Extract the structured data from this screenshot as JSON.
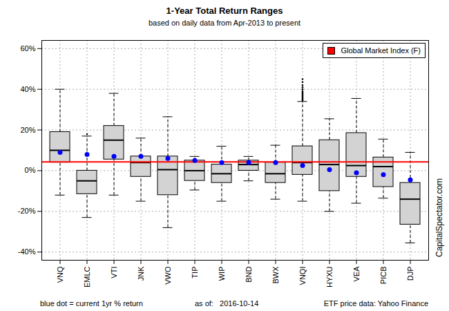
{
  "chart_data": {
    "type": "box",
    "title": "1-Year Total Return Ranges",
    "subtitle": "based on daily data from Apr-2013 to present",
    "annotations": [
      "blue dot = current 1yr % return",
      "as of:   2016-10-14",
      "ETF price data: Yahoo Finance"
    ],
    "credit": "CapitalSpectator.com",
    "categories": [
      "VNQ",
      "EMLC",
      "VTI",
      "JNK",
      "VWO",
      "TIP",
      "WIP",
      "BND",
      "BWX",
      "VNQI",
      "HYXU",
      "VEA",
      "PICB",
      "DJP"
    ],
    "boxes": {
      "color": "#d3d3d3",
      "whisker_low": [
        -12,
        -23,
        -12,
        -15,
        -28,
        -9.5,
        -15,
        -5,
        -14,
        -15,
        -20,
        -16,
        -13.5,
        -35.5
      ],
      "q1": [
        4,
        -11.5,
        5.5,
        -3,
        -12,
        -5,
        -6,
        0,
        -6,
        -2,
        -10,
        -3,
        -8,
        -26.5
      ],
      "median": [
        10,
        -5,
        15,
        4,
        0.5,
        0,
        -1.5,
        3,
        -1.5,
        4,
        3,
        2.5,
        2,
        -14
      ],
      "q3": [
        19,
        0,
        22,
        7,
        7,
        5,
        3,
        5,
        4,
        12,
        15,
        18.5,
        6.5,
        -6
      ],
      "whisker_high": [
        40,
        17,
        38,
        16,
        26.5,
        7,
        12,
        7,
        12.5,
        34,
        25.5,
        35.5,
        15.5,
        9
      ],
      "outliers": [
        [],
        [
          18
        ],
        [],
        [],
        [],
        [],
        [],
        [],
        [],
        [
          34.5,
          35,
          35.5,
          36,
          36.5,
          37,
          37.5,
          38,
          38.5,
          39,
          40,
          41,
          42,
          43.5,
          45
        ],
        [],
        [],
        [],
        []
      ]
    },
    "current": {
      "color": "#0000ff",
      "values": [
        9,
        8,
        7,
        7,
        6,
        5,
        4,
        4,
        4,
        2.5,
        0.5,
        -1,
        -2,
        -4.5
      ]
    },
    "reference": {
      "name": "Global Market Index (F)",
      "color": "#ff0000",
      "value": 4.3
    },
    "legend": "topright",
    "grid": true,
    "ylim": [
      -44,
      64
    ],
    "yticks": [
      {
        "value": -40,
        "label": "-40%"
      },
      {
        "value": -20,
        "label": "-20%"
      },
      {
        "value": 0,
        "label": "0%"
      },
      {
        "value": 20,
        "label": "20%"
      },
      {
        "value": 40,
        "label": "40%"
      },
      {
        "value": 60,
        "label": "60%"
      }
    ]
  }
}
